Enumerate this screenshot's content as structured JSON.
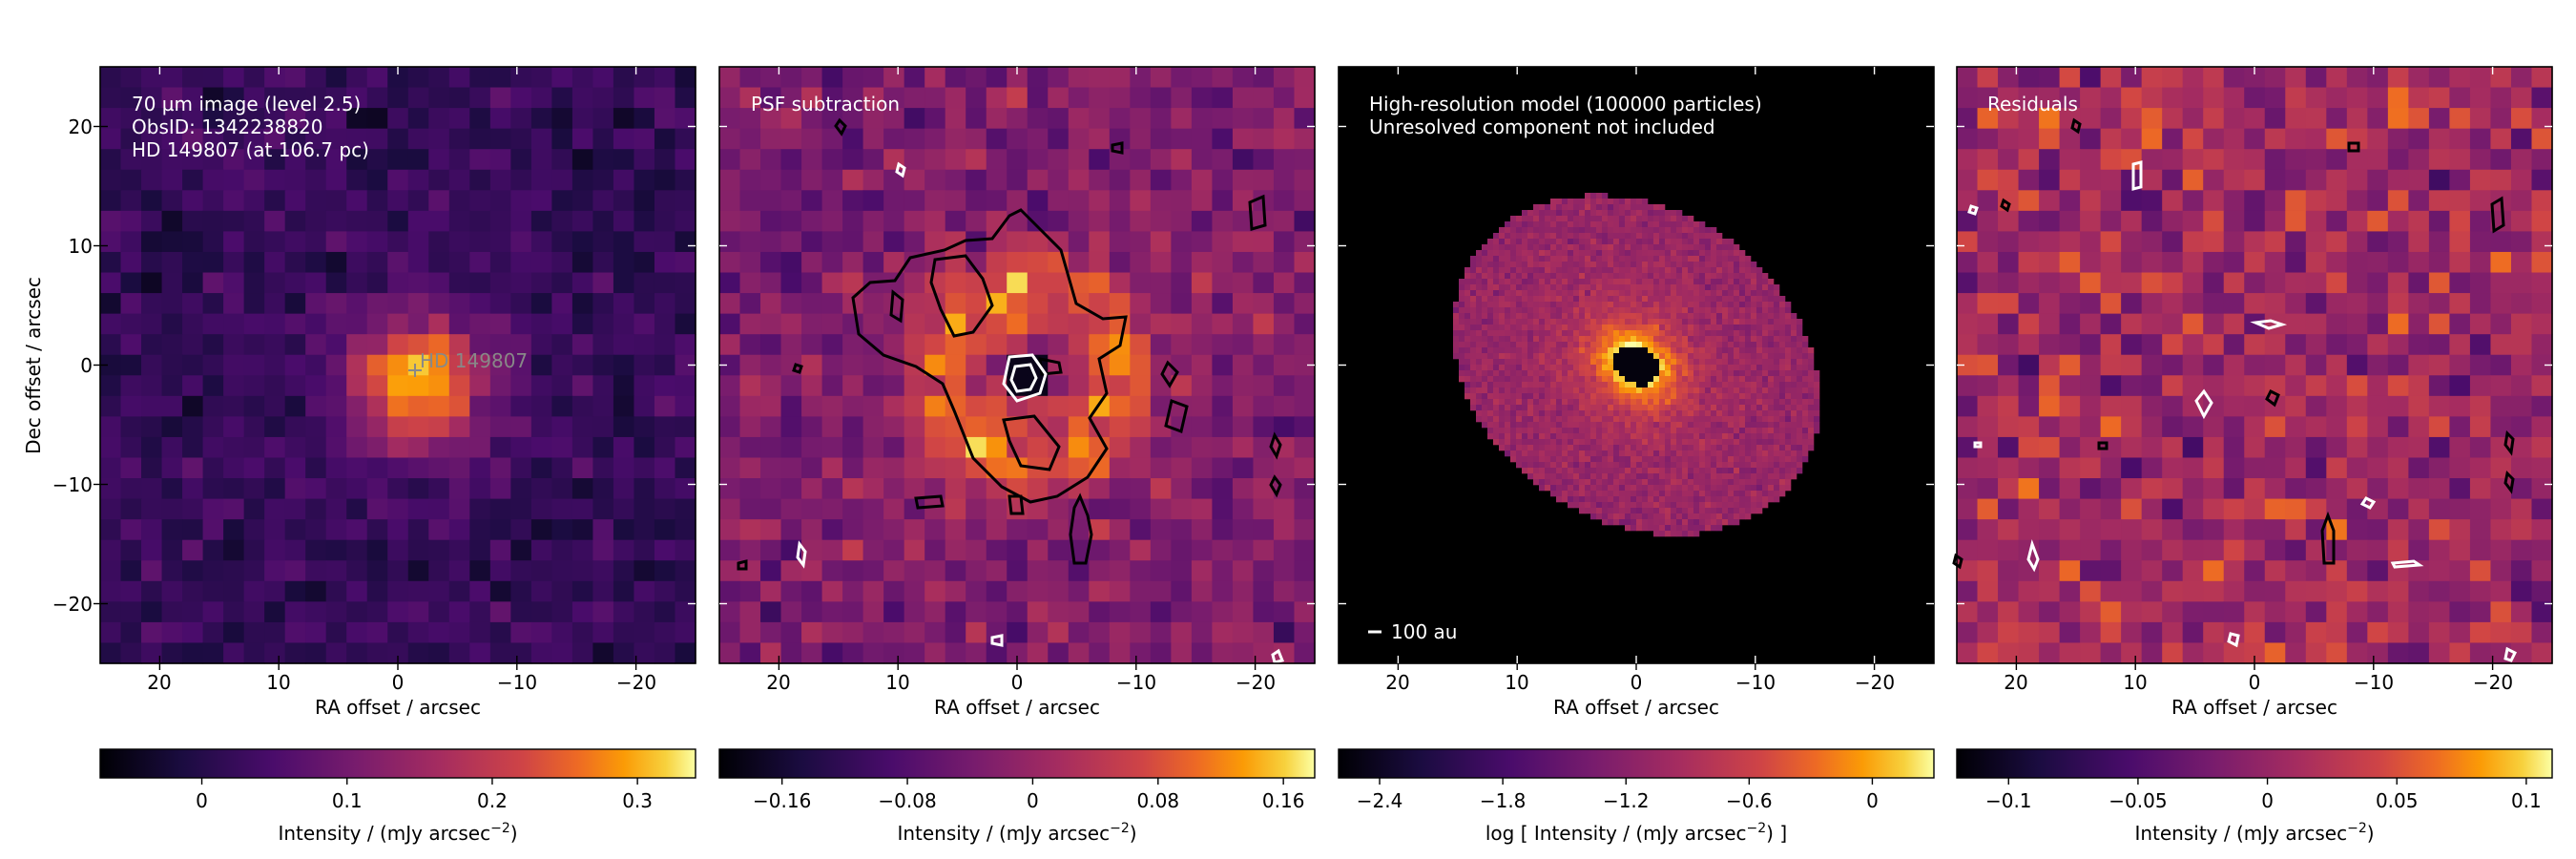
{
  "chart_data": [
    {
      "type": "heatmap",
      "annotation_lines": [
        "70 µm image (level 2.5)",
        "ObsID: 1342238820",
        "HD 149807 (at 106.7 pc)"
      ],
      "target_marker_label": "HD 149807",
      "xlabel": "RA offset / arcsec",
      "ylabel": "Dec offset / arcsec",
      "xlim": [
        25,
        -25
      ],
      "ylim": [
        -25,
        25
      ],
      "xticks": [
        "20",
        "10",
        "0",
        "−10",
        "−20"
      ],
      "yticks": [
        "20",
        "10",
        "0",
        "−10",
        "−20"
      ],
      "colormap": "inferno",
      "colorbar_label": "Intensity / (mJy arcsec",
      "colorbar_exp": "−2",
      "colorbar_suffix": ")",
      "colorbar_ticks": [
        "0",
        "0.1",
        "0.2",
        "0.3"
      ],
      "colorbar_range": [
        -0.07,
        0.34
      ],
      "source": {
        "ra": -1.5,
        "dec": -1.5,
        "peak": 0.3,
        "sigma": 4
      }
    },
    {
      "type": "heatmap",
      "annotation_lines": [
        "PSF subtraction"
      ],
      "xlabel": "RA offset / arcsec",
      "xlim": [
        25,
        -25
      ],
      "ylim": [
        -25,
        25
      ],
      "xticks": [
        "20",
        "10",
        "0",
        "−10",
        "−20"
      ],
      "colormap": "inferno",
      "contour_colors": [
        "#000000",
        "#ffffff"
      ],
      "colorbar_label": "Intensity / (mJy arcsec",
      "colorbar_exp": "−2",
      "colorbar_suffix": ")",
      "colorbar_ticks": [
        "−0.16",
        "−0.08",
        "0",
        "0.08",
        "0.16"
      ],
      "colorbar_range": [
        -0.2,
        0.18
      ]
    },
    {
      "type": "heatmap",
      "annotation_lines": [
        "High-resolution model (100000 particles)",
        "Unresolved component not included"
      ],
      "scalebar_label": "100 au",
      "xlabel": "RA offset / arcsec",
      "xlim": [
        25,
        -25
      ],
      "ylim": [
        -25,
        25
      ],
      "xticks": [
        "20",
        "10",
        "0",
        "−10",
        "−20"
      ],
      "colormap": "inferno",
      "colorbar_label": "log [ Intensity / (mJy arcsec",
      "colorbar_exp": "−2",
      "colorbar_suffix": ") ]",
      "colorbar_ticks": [
        "−2.4",
        "−1.8",
        "−1.2",
        "−0.6",
        "0"
      ],
      "colorbar_range": [
        -2.6,
        0.3
      ]
    },
    {
      "type": "heatmap",
      "annotation_lines": [
        "Residuals"
      ],
      "xlabel": "RA offset / arcsec",
      "xlim": [
        25,
        -25
      ],
      "ylim": [
        -25,
        25
      ],
      "xticks": [
        "20",
        "10",
        "0",
        "−10",
        "−20"
      ],
      "colormap": "inferno",
      "contour_colors": [
        "#000000",
        "#ffffff"
      ],
      "colorbar_label": "Intensity / (mJy arcsec",
      "colorbar_exp": "−2",
      "colorbar_suffix": ")",
      "colorbar_ticks": [
        "−0.1",
        "−0.05",
        "0",
        "0.05",
        "0.1"
      ],
      "colorbar_range": [
        -0.12,
        0.11
      ]
    }
  ]
}
